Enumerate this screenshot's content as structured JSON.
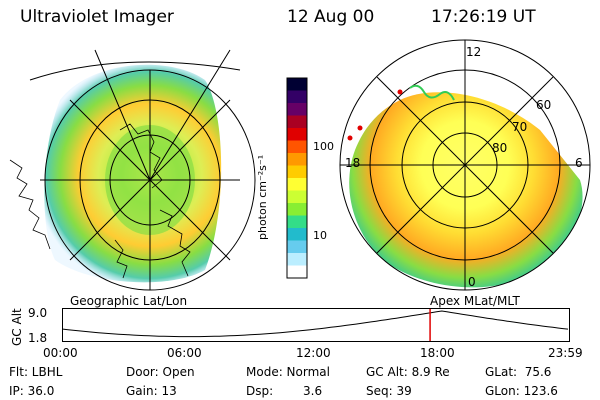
{
  "header": {
    "instrument": "Ultraviolet Imager",
    "date": "12 Aug 00",
    "time": "17:26:19 UT"
  },
  "left_panel_label": "Geographic Lat/Lon",
  "right_panel_label": "Apex MLat/MLT",
  "colorbar": {
    "unit_label": "photon cm⁻²s⁻¹",
    "ticks": [
      "100",
      "10"
    ],
    "colors": [
      "#000033",
      "#330066",
      "#660066",
      "#aa0022",
      "#e00000",
      "#ff5500",
      "#ff9900",
      "#ffcc00",
      "#ffff33",
      "#ccff33",
      "#88ee33",
      "#33dd88",
      "#22bbcc",
      "#66ccee",
      "#bbeeff",
      "#ffffff"
    ]
  },
  "polar": {
    "mlt_labels": [
      "12",
      "18",
      "6",
      "0"
    ],
    "lat_labels": [
      "60",
      "70",
      "80"
    ]
  },
  "altitude_plot": {
    "ylabel": "GC Alt",
    "yticks": [
      "9.0",
      "1.8"
    ],
    "xticks": [
      "00:00",
      "06:00",
      "12:00",
      "18:00",
      "23:59"
    ],
    "marker_time": "17:26",
    "marker_color": "#e00000"
  },
  "footer": {
    "flt": "Flt: LBHL",
    "ip": "IP: 36.0",
    "door": "Door: Open",
    "gain": "Gain: 13",
    "mode": "Mode: Normal",
    "dsp_label": "Dsp:",
    "dsp_value": "3.6",
    "gcalt": "GC Alt: 8.9 Re",
    "seq": "Seq: 39",
    "glat": "GLat:  75.6",
    "glon": "GLon: 123.6"
  }
}
